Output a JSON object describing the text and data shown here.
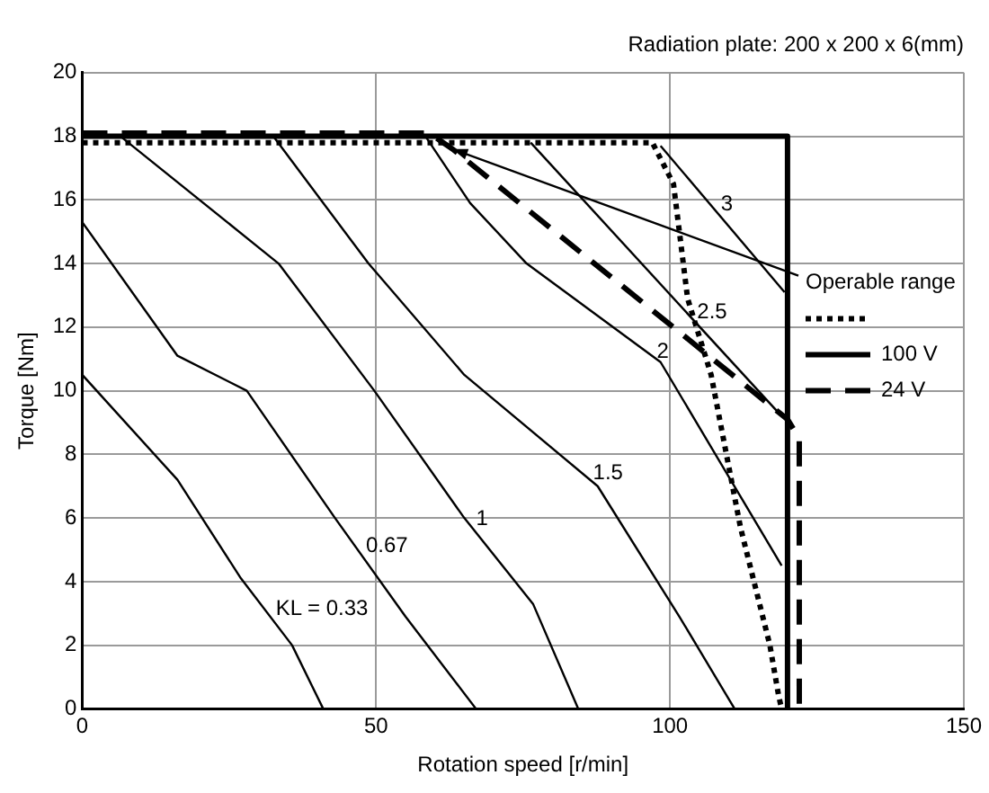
{
  "chart_data": {
    "type": "line",
    "subtitle": "Radiation plate: 200 x 200 x 6(mm)",
    "xlabel": "Rotation speed [r/min]",
    "ylabel": "Torque [Nm]",
    "legend_title": "Operable range",
    "xlim": [
      0,
      150
    ],
    "xticks": [
      0,
      50,
      100,
      150
    ],
    "ylim": [
      0,
      20
    ],
    "yticks": [
      0,
      2,
      4,
      6,
      8,
      10,
      12,
      14,
      16,
      18,
      20
    ],
    "grid": true,
    "legend": "right",
    "marker": "none",
    "series": [
      {
        "color": "#000000",
        "line_style": "dotted",
        "x": [
          0,
          97,
          100.6,
          103,
          107,
          112,
          117,
          118.5,
          119
        ],
        "values": [
          17.8,
          17.8,
          16.5,
          12.9,
          10.5,
          5.7,
          2.0,
          0.4,
          0
        ]
      },
      {
        "name": "100 V",
        "color": "#000000",
        "line_style": "solid",
        "x": [
          0,
          120,
          120
        ],
        "values": [
          18,
          18,
          0
        ]
      },
      {
        "name": "24 V",
        "color": "#000000",
        "line_style": "dashed",
        "x": [
          0,
          59,
          63,
          120,
          122,
          122
        ],
        "values": [
          18.1,
          18.1,
          17.6,
          9.1,
          8.5,
          0
        ]
      },
      {
        "color": "#000000",
        "line_style": "solid",
        "x": [
          0,
          16.2,
          27,
          35.7,
          41
        ],
        "values": [
          10.5,
          7.2,
          4.1,
          2.0,
          0
        ]
      },
      {
        "color": "#000000",
        "line_style": "solid",
        "x": [
          0,
          16.2,
          28,
          43,
          55,
          67
        ],
        "values": [
          15.3,
          11.1,
          10.0,
          6.0,
          2.9,
          0
        ]
      },
      {
        "color": "#000000",
        "line_style": "solid",
        "x": [
          6.5,
          33.4,
          49.7,
          65,
          76.7,
          84.4
        ],
        "values": [
          18,
          14,
          10,
          6,
          3.3,
          0
        ]
      },
      {
        "color": "#000000",
        "line_style": "solid",
        "x": [
          32.5,
          48.7,
          65,
          87.7,
          101.6,
          111
        ],
        "values": [
          18,
          14,
          10.5,
          7.0,
          2.9,
          0
        ]
      },
      {
        "color": "#000000",
        "line_style": "solid",
        "x": [
          58.4,
          66,
          75.6,
          98.4,
          119
        ],
        "values": [
          18,
          15.9,
          14,
          10.9,
          4.5
        ]
      },
      {
        "color": "#000000",
        "line_style": "solid",
        "x": [
          76.3,
          119
        ],
        "values": [
          17.8,
          9.2
        ]
      },
      {
        "color": "#000000",
        "line_style": "solid",
        "x": [
          98.4,
          119.5
        ],
        "values": [
          17.7,
          13.1
        ]
      }
    ],
    "annotations": [
      "KL = 0.33",
      "0.67",
      "1",
      "1.5",
      "2",
      "2.5",
      "3"
    ]
  }
}
